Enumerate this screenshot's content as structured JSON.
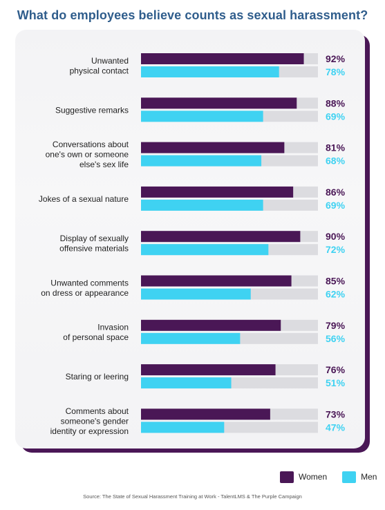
{
  "title": "What do employees believe counts as sexual harassment?",
  "legend": {
    "women": "Women",
    "men": "Men"
  },
  "source": "Source: The State of Sexual Harassment Training at Work - TalentLMS & The Purple Campaign",
  "colors": {
    "women": "#4a1756",
    "men": "#3fd2f2",
    "track": "#dcdce0",
    "women_text": "#4a1756",
    "men_text": "#3fd2f2",
    "title": "#2f5d8c"
  },
  "chart_data": {
    "type": "bar",
    "orientation": "horizontal",
    "title": "What do employees believe counts as sexual harassment?",
    "ylim": [
      0,
      100
    ],
    "categories": [
      [
        "Unwanted",
        "physical contact"
      ],
      [
        "Suggestive remarks"
      ],
      [
        "Conversations about",
        "one's own or someone",
        "else's sex life"
      ],
      [
        "Jokes of a sexual nature"
      ],
      [
        "Display of sexually",
        "offensive materials"
      ],
      [
        "Unwanted comments",
        "on dress or appearance"
      ],
      [
        "Invasion",
        "of personal space"
      ],
      [
        "Staring or leering"
      ],
      [
        "Comments about",
        "someone's gender",
        "identity or expression"
      ]
    ],
    "series": [
      {
        "name": "Women",
        "values": [
          92,
          88,
          81,
          86,
          90,
          85,
          79,
          76,
          73
        ],
        "labels": [
          "92%",
          "88%",
          "81%",
          "86%",
          "90%",
          "85%",
          "79%",
          "76%",
          "73%"
        ]
      },
      {
        "name": "Men",
        "values": [
          78,
          69,
          68,
          69,
          72,
          62,
          56,
          51,
          47
        ],
        "labels": [
          "78%",
          "69%",
          "68%",
          "69%",
          "72%",
          "62%",
          "56%",
          "51%",
          "47%"
        ]
      }
    ]
  }
}
